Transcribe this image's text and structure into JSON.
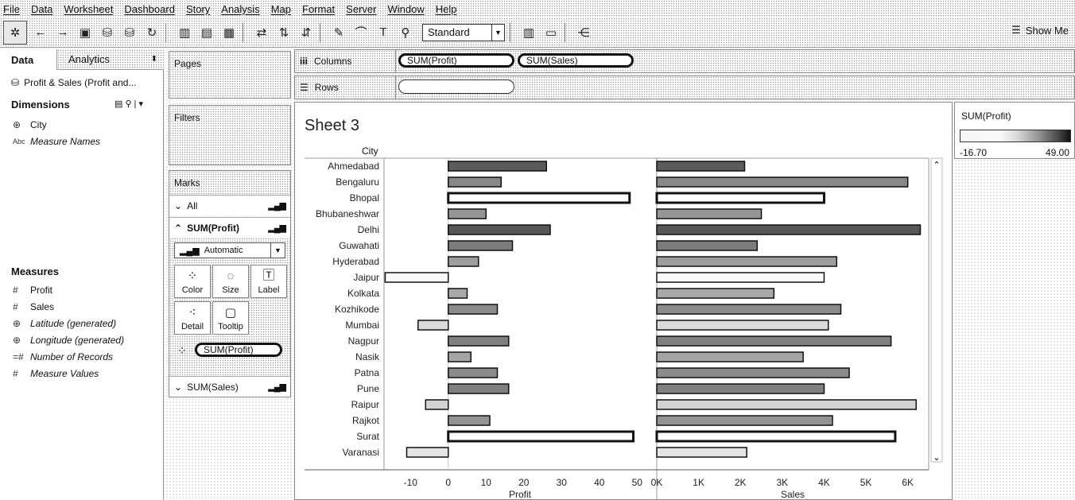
{
  "menu": [
    "File",
    "Data",
    "Worksheet",
    "Dashboard",
    "Story",
    "Analysis",
    "Map",
    "Format",
    "Server",
    "Window",
    "Help"
  ],
  "toolbar": {
    "standard_label": "Standard",
    "show_me_label": "Show Me"
  },
  "data_pane": {
    "tab_data": "Data",
    "tab_analytics": "Analytics",
    "datasource": "Profit & Sales (Profit and...",
    "dimensions_title": "Dimensions",
    "dimensions": [
      {
        "icon": "⊕",
        "label": "City",
        "italic": false
      },
      {
        "icon": "Abc",
        "label": "Measure Names",
        "italic": true
      }
    ],
    "measures_title": "Measures",
    "measures": [
      {
        "icon": "#",
        "label": "Profit",
        "italic": false
      },
      {
        "icon": "#",
        "label": "Sales",
        "italic": false
      },
      {
        "icon": "⊕",
        "label": "Latitude (generated)",
        "italic": true
      },
      {
        "icon": "⊕",
        "label": "Longitude (generated)",
        "italic": true
      },
      {
        "icon": "=#",
        "label": "Number of Records",
        "italic": true
      },
      {
        "icon": "#",
        "label": "Measure Values",
        "italic": true
      }
    ]
  },
  "cards": {
    "pages": "Pages",
    "filters": "Filters",
    "marks": "Marks",
    "all": "All",
    "profit_section": "SUM(Profit)",
    "mark_type": "Automatic",
    "color": "Color",
    "size": "Size",
    "label": "Label",
    "detail": "Detail",
    "tooltip": "Tooltip",
    "color_pill": "SUM(Profit)",
    "sales_section": "SUM(Sales)"
  },
  "shelves": {
    "columns_label": "Columns",
    "rows_label": "Rows",
    "columns_pills": [
      "SUM(Profit)",
      "SUM(Sales)"
    ]
  },
  "sheet": {
    "title": "Sheet 3",
    "row_header": "City"
  },
  "legend": {
    "title": "SUM(Profit)",
    "min": "-16.70",
    "max": "49.00"
  },
  "chart_data": {
    "type": "bar",
    "orientation": "horizontal",
    "categories": [
      "Ahmedabad",
      "Bengaluru",
      "Bhopal",
      "Bhubaneshwar",
      "Delhi",
      "Guwahati",
      "Hyderabad",
      "Jaipur",
      "Kolkata",
      "Kozhikode",
      "Mumbai",
      "Nagpur",
      "Nasik",
      "Patna",
      "Pune",
      "Raipur",
      "Rajkot",
      "Surat",
      "Varanasi"
    ],
    "series": [
      {
        "name": "Profit",
        "values": [
          26,
          14,
          48,
          10,
          27,
          17,
          8,
          -16.7,
          5,
          13,
          -8,
          16,
          6,
          13,
          16,
          -6,
          11,
          49,
          -11
        ]
      },
      {
        "name": "Sales",
        "values": [
          2100,
          6000,
          4000,
          2500,
          6300,
          2400,
          4300,
          4000,
          2800,
          4400,
          4100,
          5600,
          3500,
          4600,
          4000,
          6200,
          4200,
          5700,
          2150
        ]
      }
    ],
    "axes": [
      {
        "label": "Profit",
        "ticks": [
          "-10",
          "0",
          "10",
          "20",
          "30",
          "40",
          "50"
        ],
        "tick_values": [
          -10,
          0,
          10,
          20,
          30,
          40,
          50
        ],
        "range": [
          -17,
          55
        ]
      },
      {
        "label": "Sales",
        "ticks": [
          "0K",
          "1K",
          "2K",
          "3K",
          "4K",
          "5K",
          "6K"
        ],
        "tick_values": [
          0,
          1000,
          2000,
          3000,
          4000,
          5000,
          6000
        ],
        "range": [
          0,
          6500
        ]
      }
    ],
    "color_by": "SUM(Profit)",
    "color_range": [
      -16.7,
      49.0
    ]
  }
}
